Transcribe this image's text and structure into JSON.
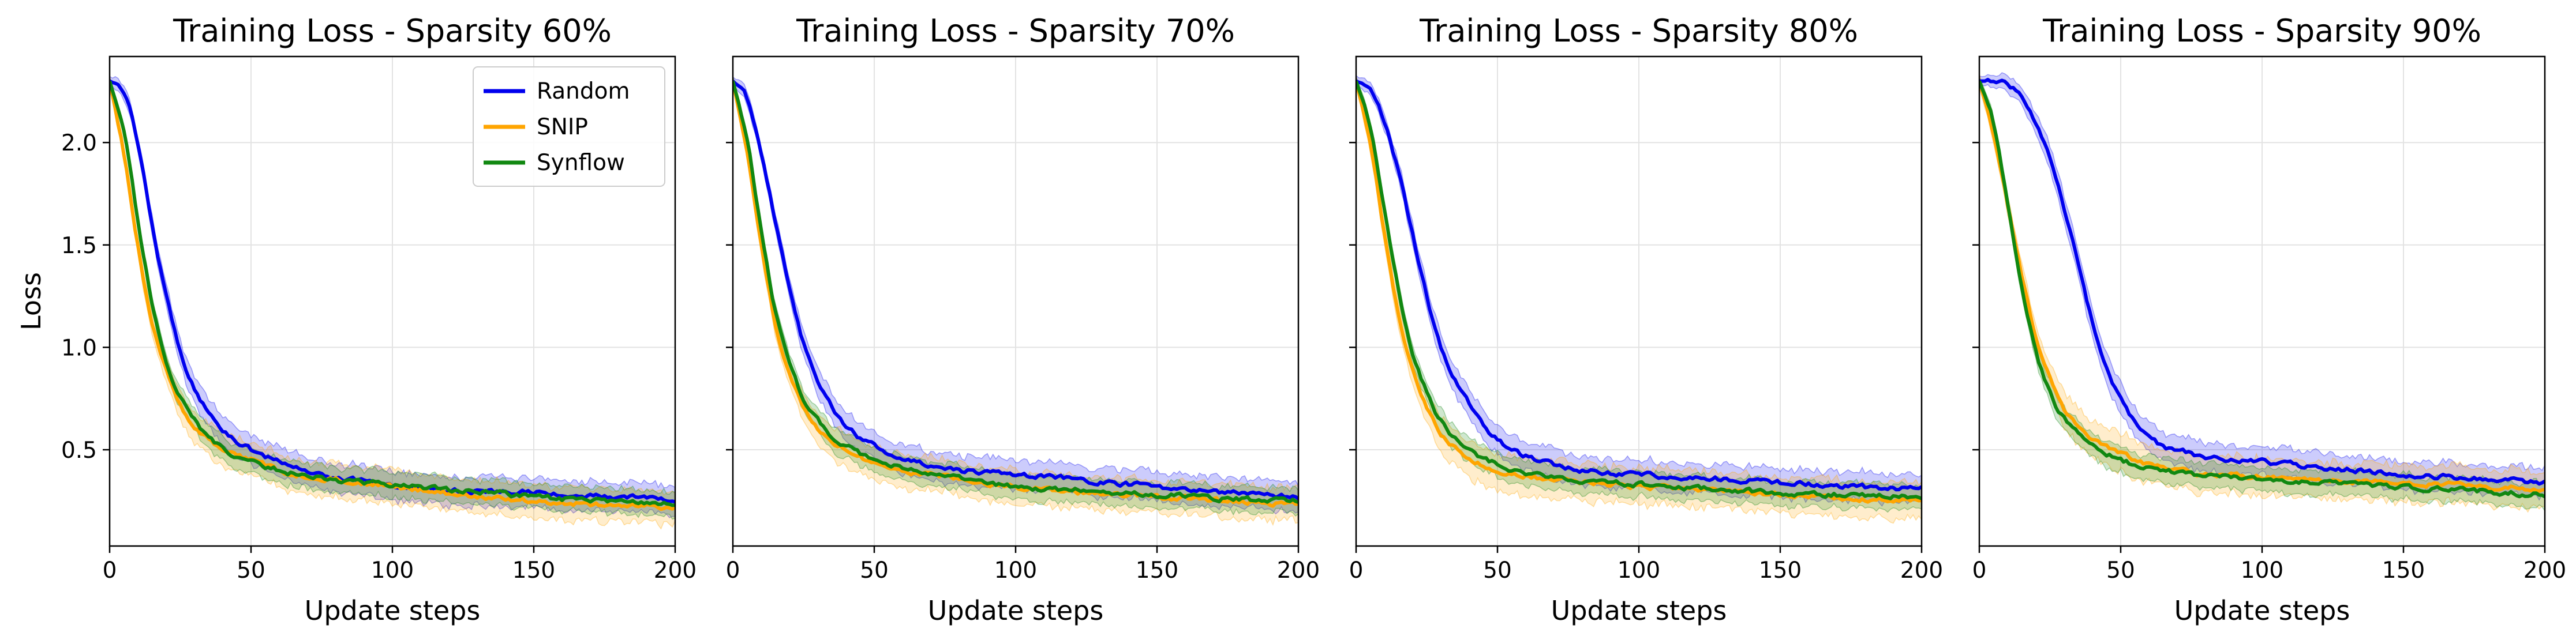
{
  "chart_data": {
    "type": "line",
    "shared": {
      "xlabel": "Update steps",
      "ylabel": "Loss",
      "xlim": [
        0,
        200
      ],
      "ylim": [
        0.03,
        2.42
      ],
      "xticks": [
        0,
        50,
        100,
        150,
        200
      ],
      "yticks": [
        0.5,
        1.0,
        1.5,
        2.0
      ],
      "grid": true,
      "legend_location": "top-right (first panel only)",
      "series_colors": {
        "Random": "#0000ee",
        "SNIP": "#ffa500",
        "Synflow": "#118811"
      }
    },
    "panels": [
      {
        "title": "Training Loss - Sparsity 60%",
        "series": [
          {
            "name": "Random",
            "x": [
              0,
              5,
              10,
              15,
              20,
              25,
              30,
              40,
              50,
              60,
              75,
              100,
              125,
              150,
              175,
              200
            ],
            "y": [
              2.3,
              2.25,
              2.0,
              1.6,
              1.25,
              0.98,
              0.8,
              0.6,
              0.5,
              0.44,
              0.38,
              0.33,
              0.3,
              0.29,
              0.27,
              0.26
            ],
            "band": 0.07
          },
          {
            "name": "SNIP",
            "x": [
              0,
              5,
              10,
              15,
              20,
              25,
              30,
              40,
              50,
              60,
              75,
              100,
              125,
              150,
              175,
              200
            ],
            "y": [
              2.3,
              1.95,
              1.5,
              1.12,
              0.88,
              0.72,
              0.62,
              0.5,
              0.45,
              0.4,
              0.36,
              0.32,
              0.28,
              0.25,
              0.23,
              0.22
            ],
            "band": 0.08
          },
          {
            "name": "Synflow",
            "x": [
              0,
              5,
              10,
              15,
              20,
              25,
              30,
              40,
              50,
              60,
              75,
              100,
              125,
              150,
              175,
              200
            ],
            "y": [
              2.3,
              2.05,
              1.62,
              1.22,
              0.94,
              0.76,
              0.64,
              0.51,
              0.44,
              0.4,
              0.36,
              0.33,
              0.3,
              0.27,
              0.25,
              0.24
            ],
            "band": 0.06
          }
        ]
      },
      {
        "title": "Training Loss - Sparsity 70%",
        "series": [
          {
            "name": "Random",
            "x": [
              0,
              5,
              10,
              15,
              20,
              25,
              30,
              40,
              50,
              60,
              75,
              100,
              125,
              150,
              175,
              200
            ],
            "y": [
              2.3,
              2.22,
              1.95,
              1.62,
              1.3,
              1.02,
              0.84,
              0.62,
              0.52,
              0.46,
              0.41,
              0.38,
              0.35,
              0.32,
              0.29,
              0.27
            ],
            "band": 0.07
          },
          {
            "name": "SNIP",
            "x": [
              0,
              5,
              10,
              15,
              20,
              25,
              30,
              40,
              50,
              60,
              75,
              100,
              125,
              150,
              175,
              200
            ],
            "y": [
              2.3,
              1.95,
              1.5,
              1.12,
              0.88,
              0.72,
              0.61,
              0.5,
              0.44,
              0.4,
              0.37,
              0.32,
              0.29,
              0.27,
              0.25,
              0.23
            ],
            "band": 0.08
          },
          {
            "name": "Synflow",
            "x": [
              0,
              5,
              10,
              15,
              20,
              25,
              30,
              40,
              50,
              60,
              75,
              100,
              125,
              150,
              175,
              200
            ],
            "y": [
              2.3,
              2.02,
              1.58,
              1.18,
              0.92,
              0.75,
              0.64,
              0.52,
              0.45,
              0.41,
              0.37,
              0.32,
              0.3,
              0.28,
              0.26,
              0.25
            ],
            "band": 0.06
          }
        ]
      },
      {
        "title": "Training Loss - Sparsity 80%",
        "series": [
          {
            "name": "Random",
            "x": [
              0,
              5,
              10,
              15,
              20,
              25,
              30,
              40,
              50,
              60,
              75,
              100,
              125,
              150,
              175,
              200
            ],
            "y": [
              2.3,
              2.26,
              2.1,
              1.85,
              1.55,
              1.25,
              1.0,
              0.72,
              0.55,
              0.47,
              0.41,
              0.38,
              0.36,
              0.34,
              0.32,
              0.31
            ],
            "band": 0.07
          },
          {
            "name": "SNIP",
            "x": [
              0,
              5,
              10,
              15,
              20,
              25,
              30,
              40,
              50,
              60,
              75,
              100,
              125,
              150,
              175,
              200
            ],
            "y": [
              2.3,
              2.0,
              1.55,
              1.15,
              0.88,
              0.7,
              0.58,
              0.46,
              0.4,
              0.37,
              0.35,
              0.32,
              0.3,
              0.28,
              0.26,
              0.25
            ],
            "band": 0.09
          },
          {
            "name": "Synflow",
            "x": [
              0,
              5,
              10,
              15,
              20,
              25,
              30,
              40,
              50,
              60,
              75,
              100,
              125,
              150,
              175,
              200
            ],
            "y": [
              2.3,
              2.08,
              1.68,
              1.28,
              0.98,
              0.78,
              0.64,
              0.5,
              0.43,
              0.39,
              0.36,
              0.33,
              0.31,
              0.29,
              0.28,
              0.27
            ],
            "band": 0.06
          }
        ]
      },
      {
        "title": "Training Loss - Sparsity 90%",
        "series": [
          {
            "name": "Random",
            "x": [
              0,
              5,
              10,
              15,
              20,
              25,
              30,
              35,
              40,
              45,
              50,
              60,
              75,
              100,
              125,
              150,
              175,
              200
            ],
            "y": [
              2.3,
              2.3,
              2.28,
              2.22,
              2.1,
              1.92,
              1.68,
              1.4,
              1.12,
              0.9,
              0.74,
              0.56,
              0.48,
              0.44,
              0.41,
              0.38,
              0.36,
              0.34
            ],
            "band": 0.07
          },
          {
            "name": "SNIP",
            "x": [
              0,
              5,
              10,
              15,
              20,
              25,
              30,
              40,
              50,
              60,
              75,
              100,
              125,
              150,
              175,
              200
            ],
            "y": [
              2.3,
              2.05,
              1.7,
              1.35,
              1.05,
              0.85,
              0.7,
              0.55,
              0.48,
              0.43,
              0.39,
              0.37,
              0.35,
              0.34,
              0.32,
              0.31
            ],
            "band": 0.09
          },
          {
            "name": "Synflow",
            "x": [
              0,
              5,
              10,
              15,
              20,
              25,
              30,
              40,
              50,
              60,
              75,
              100,
              125,
              150,
              175,
              200
            ],
            "y": [
              2.3,
              2.1,
              1.7,
              1.28,
              0.98,
              0.78,
              0.65,
              0.52,
              0.45,
              0.41,
              0.38,
              0.36,
              0.34,
              0.32,
              0.3,
              0.28
            ],
            "band": 0.06
          }
        ]
      }
    ]
  }
}
